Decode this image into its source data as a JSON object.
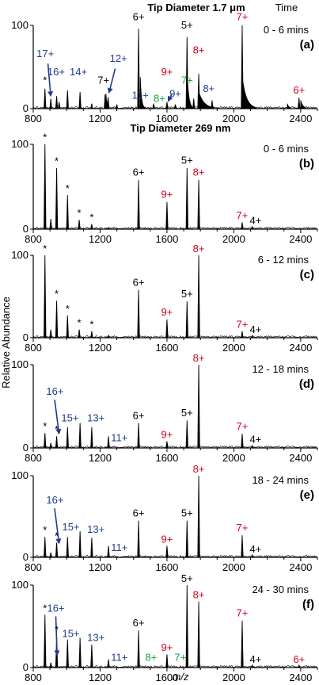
{
  "figure": {
    "header_a": "Tip Diameter 1.7 μm",
    "header_time": "Time",
    "header_b": "Tip Diameter 269 nm",
    "ylabel": "Relative Abundance",
    "xlabel": "m/z",
    "colors": {
      "black": "#000000",
      "red": "#d0021b",
      "blue": "#1f3c8c",
      "green": "#18a23a"
    }
  },
  "chart_data": [
    {
      "type": "line",
      "panel": "(a)",
      "time": "0 - 6 mins",
      "xlim": [
        800,
        2500
      ],
      "ylim": [
        0,
        100
      ],
      "xticks": [
        800,
        1200,
        1600,
        2000,
        2400
      ],
      "yticks": [
        0,
        100
      ],
      "peaks": [
        [
          870,
          24
        ],
        [
          905,
          12
        ],
        [
          940,
          15
        ],
        [
          955,
          8
        ],
        [
          1005,
          22
        ],
        [
          1080,
          20
        ],
        [
          1150,
          6
        ],
        [
          1230,
          17
        ],
        [
          1248,
          14
        ],
        [
          1300,
          5
        ],
        [
          1430,
          96
        ],
        [
          1520,
          6
        ],
        [
          1600,
          8
        ],
        [
          1650,
          5
        ],
        [
          1720,
          86
        ],
        [
          1760,
          12
        ],
        [
          1790,
          42
        ],
        [
          1870,
          10
        ],
        [
          2050,
          100
        ],
        [
          2390,
          13
        ]
      ],
      "humps": [
        [
          1440,
          38,
          1.6,
          28
        ],
        [
          1720,
          46,
          1.0,
          30
        ],
        [
          1790,
          20,
          0.8,
          90
        ],
        [
          2050,
          38,
          1.4,
          85
        ],
        [
          1235,
          18,
          0.4,
          12
        ],
        [
          1240,
          10,
          0.3,
          6
        ],
        [
          2320,
          6,
          0.2,
          20
        ],
        [
          2400,
          10,
          0.3,
          30
        ]
      ],
      "labels": [
        {
          "text": "17+",
          "x": 872,
          "y": 62,
          "c": "blue"
        },
        {
          "text": "16+",
          "x": 937,
          "y": 40,
          "c": "blue"
        },
        {
          "text": "*",
          "x": 870,
          "y": 30,
          "c": "black"
        },
        {
          "text": "14+",
          "x": 1070,
          "y": 40,
          "c": "blue"
        },
        {
          "text": "12+",
          "x": 1310,
          "y": 56,
          "c": "blue"
        },
        {
          "text": "7+",
          "x": 1220,
          "y": 30,
          "c": "black"
        },
        {
          "text": "11+",
          "x": 1440,
          "y": 12,
          "c": "blue"
        },
        {
          "text": "6+",
          "x": 1430,
          "y": 106,
          "c": "black"
        },
        {
          "text": "8+",
          "x": 1555,
          "y": 8,
          "c": "green"
        },
        {
          "text": "9+",
          "x": 1600,
          "y": 40,
          "c": "red"
        },
        {
          "text": "9+",
          "x": 1650,
          "y": 14,
          "c": "blue"
        },
        {
          "text": "7+",
          "x": 1720,
          "y": 30,
          "c": "green"
        },
        {
          "text": "5+",
          "x": 1720,
          "y": 96,
          "c": "black"
        },
        {
          "text": "8+",
          "x": 1790,
          "y": 66,
          "c": "red"
        },
        {
          "text": "8+",
          "x": 1850,
          "y": 20,
          "c": "blue"
        },
        {
          "text": "7+",
          "x": 2050,
          "y": 106,
          "c": "red"
        },
        {
          "text": "6+",
          "x": 2390,
          "y": 18,
          "c": "red"
        }
      ],
      "arrows": [
        [
          888,
          54,
          905,
          14
        ],
        [
          1290,
          48,
          1252,
          18
        ],
        [
          1630,
          18,
          1605,
          8
        ]
      ]
    },
    {
      "type": "line",
      "panel": "(b)",
      "time": "0 - 6 mins",
      "xlim": [
        800,
        2500
      ],
      "ylim": [
        0,
        100
      ],
      "xticks": [
        800,
        1200,
        1600,
        2000,
        2400
      ],
      "yticks": [
        0,
        100
      ],
      "peaks": [
        [
          870,
          100
        ],
        [
          905,
          12
        ],
        [
          940,
          72
        ],
        [
          1005,
          40
        ],
        [
          1075,
          11
        ],
        [
          1150,
          6
        ],
        [
          1250,
          2
        ],
        [
          1430,
          58
        ],
        [
          1600,
          32
        ],
        [
          1720,
          72
        ],
        [
          1790,
          58
        ],
        [
          2050,
          8
        ],
        [
          2110,
          3
        ]
      ],
      "humps": [],
      "labels": [
        {
          "text": "*",
          "x": 870,
          "y": 104,
          "c": "black"
        },
        {
          "text": "*",
          "x": 940,
          "y": 76,
          "c": "black"
        },
        {
          "text": "*",
          "x": 1005,
          "y": 44,
          "c": "black"
        },
        {
          "text": "*",
          "x": 1075,
          "y": 15,
          "c": "black"
        },
        {
          "text": "*",
          "x": 1150,
          "y": 10,
          "c": "black"
        },
        {
          "text": "6+",
          "x": 1430,
          "y": 63,
          "c": "black"
        },
        {
          "text": "9+",
          "x": 1600,
          "y": 37,
          "c": "red"
        },
        {
          "text": "5+",
          "x": 1720,
          "y": 77,
          "c": "black"
        },
        {
          "text": "8+",
          "x": 1790,
          "y": 63,
          "c": "red"
        },
        {
          "text": "7+",
          "x": 2050,
          "y": 12,
          "c": "red"
        },
        {
          "text": "4+",
          "x": 2130,
          "y": 6,
          "c": "black"
        }
      ],
      "arrows": []
    },
    {
      "type": "line",
      "panel": "(c)",
      "time": "6 - 12 mins",
      "xlim": [
        800,
        2500
      ],
      "ylim": [
        0,
        100
      ],
      "xticks": [
        800,
        1200,
        1600,
        2000,
        2400
      ],
      "yticks": [
        0,
        100
      ],
      "peaks": [
        [
          870,
          100
        ],
        [
          905,
          10
        ],
        [
          940,
          45
        ],
        [
          1005,
          27
        ],
        [
          1075,
          10
        ],
        [
          1150,
          8
        ],
        [
          1250,
          3
        ],
        [
          1430,
          58
        ],
        [
          1600,
          22
        ],
        [
          1720,
          44
        ],
        [
          1790,
          100
        ],
        [
          2050,
          8
        ],
        [
          2110,
          3
        ]
      ],
      "humps": [],
      "labels": [
        {
          "text": "*",
          "x": 870,
          "y": 104,
          "c": "black"
        },
        {
          "text": "*",
          "x": 940,
          "y": 49,
          "c": "black"
        },
        {
          "text": "*",
          "x": 1005,
          "y": 31,
          "c": "black"
        },
        {
          "text": "*",
          "x": 1075,
          "y": 14,
          "c": "black"
        },
        {
          "text": "*",
          "x": 1150,
          "y": 12,
          "c": "black"
        },
        {
          "text": "6+",
          "x": 1430,
          "y": 63,
          "c": "black"
        },
        {
          "text": "9+",
          "x": 1600,
          "y": 27,
          "c": "red"
        },
        {
          "text": "5+",
          "x": 1720,
          "y": 49,
          "c": "black"
        },
        {
          "text": "8+",
          "x": 1790,
          "y": 104,
          "c": "red"
        },
        {
          "text": "7+",
          "x": 2050,
          "y": 12,
          "c": "red"
        },
        {
          "text": "4+",
          "x": 2130,
          "y": 6,
          "c": "black"
        }
      ],
      "arrows": []
    },
    {
      "type": "line",
      "panel": "(d)",
      "time": "12 - 18 mins",
      "xlim": [
        800,
        2500
      ],
      "ylim": [
        0,
        100
      ],
      "xticks": [
        800,
        1200,
        1600,
        2000,
        2400
      ],
      "yticks": [
        0,
        100
      ],
      "peaks": [
        [
          870,
          18
        ],
        [
          905,
          6
        ],
        [
          940,
          14
        ],
        [
          1005,
          25
        ],
        [
          1080,
          30
        ],
        [
          1150,
          25
        ],
        [
          1250,
          14
        ],
        [
          1430,
          30
        ],
        [
          1600,
          8
        ],
        [
          1720,
          33
        ],
        [
          1790,
          100
        ],
        [
          2050,
          17
        ],
        [
          2110,
          3
        ]
      ],
      "humps": [],
      "labels": [
        {
          "text": "*",
          "x": 870,
          "y": 22,
          "c": "black"
        },
        {
          "text": "*",
          "x": 940,
          "y": 18,
          "c": "black"
        },
        {
          "text": "16+",
          "x": 930,
          "y": 64,
          "c": "blue"
        },
        {
          "text": "15+",
          "x": 1020,
          "y": 32,
          "c": "blue"
        },
        {
          "text": "13+",
          "x": 1175,
          "y": 32,
          "c": "blue"
        },
        {
          "text": "11+",
          "x": 1315,
          "y": 8,
          "c": "blue"
        },
        {
          "text": "6+",
          "x": 1430,
          "y": 35,
          "c": "black"
        },
        {
          "text": "9+",
          "x": 1600,
          "y": 12,
          "c": "red"
        },
        {
          "text": "5+",
          "x": 1720,
          "y": 38,
          "c": "black"
        },
        {
          "text": "8+",
          "x": 1790,
          "y": 104,
          "c": "red"
        },
        {
          "text": "7+",
          "x": 2050,
          "y": 22,
          "c": "red"
        },
        {
          "text": "4+",
          "x": 2130,
          "y": 6,
          "c": "black"
        }
      ],
      "arrows": [
        [
          928,
          58,
          955,
          16
        ]
      ]
    },
    {
      "type": "line",
      "panel": "(e)",
      "time": "18 - 24 mins",
      "xlim": [
        800,
        2500
      ],
      "ylim": [
        0,
        100
      ],
      "xticks": [
        800,
        1200,
        1600,
        2000,
        2400
      ],
      "yticks": [
        0,
        100
      ],
      "peaks": [
        [
          870,
          25
        ],
        [
          905,
          6
        ],
        [
          940,
          18
        ],
        [
          1005,
          25
        ],
        [
          1080,
          32
        ],
        [
          1150,
          24
        ],
        [
          1250,
          14
        ],
        [
          1430,
          45
        ],
        [
          1600,
          14
        ],
        [
          1720,
          45
        ],
        [
          1790,
          100
        ],
        [
          2050,
          27
        ],
        [
          2110,
          3
        ]
      ],
      "humps": [],
      "labels": [
        {
          "text": "*",
          "x": 870,
          "y": 29,
          "c": "black"
        },
        {
          "text": "*",
          "x": 940,
          "y": 22,
          "c": "black"
        },
        {
          "text": "16+",
          "x": 930,
          "y": 66,
          "c": "blue"
        },
        {
          "text": "15+",
          "x": 1025,
          "y": 33,
          "c": "blue"
        },
        {
          "text": "13+",
          "x": 1175,
          "y": 30,
          "c": "blue"
        },
        {
          "text": "11+",
          "x": 1315,
          "y": 8,
          "c": "blue"
        },
        {
          "text": "6+",
          "x": 1430,
          "y": 50,
          "c": "black"
        },
        {
          "text": "9+",
          "x": 1600,
          "y": 18,
          "c": "red"
        },
        {
          "text": "5+",
          "x": 1720,
          "y": 50,
          "c": "black"
        },
        {
          "text": "8+",
          "x": 1790,
          "y": 104,
          "c": "red"
        },
        {
          "text": "7+",
          "x": 2050,
          "y": 32,
          "c": "red"
        },
        {
          "text": "4+",
          "x": 2130,
          "y": 6,
          "c": "black"
        }
      ],
      "arrows": [
        [
          928,
          60,
          955,
          16
        ]
      ]
    },
    {
      "type": "line",
      "panel": "(f)",
      "time": "24 - 30 mins",
      "xlim": [
        800,
        2500
      ],
      "ylim": [
        0,
        100
      ],
      "xticks": [
        800,
        1200,
        1600,
        2000,
        2400
      ],
      "yticks": [
        0,
        100
      ],
      "peaks": [
        [
          870,
          64
        ],
        [
          905,
          6
        ],
        [
          940,
          38
        ],
        [
          1005,
          34
        ],
        [
          1080,
          36
        ],
        [
          1150,
          28
        ],
        [
          1250,
          10
        ],
        [
          1430,
          45
        ],
        [
          1600,
          16
        ],
        [
          1720,
          100
        ],
        [
          1790,
          80
        ],
        [
          2050,
          57
        ],
        [
          2110,
          3
        ],
        [
          2390,
          3
        ]
      ],
      "humps": [],
      "labels": [
        {
          "text": "*",
          "x": 870,
          "y": 68,
          "c": "black"
        },
        {
          "text": "*",
          "x": 940,
          "y": 42,
          "c": "black"
        },
        {
          "text": "16+",
          "x": 935,
          "y": 68,
          "c": "blue"
        },
        {
          "text": "15+",
          "x": 1025,
          "y": 37,
          "c": "blue"
        },
        {
          "text": "13+",
          "x": 1175,
          "y": 32,
          "c": "blue"
        },
        {
          "text": "11+",
          "x": 1315,
          "y": 8,
          "c": "blue"
        },
        {
          "text": "8+",
          "x": 1505,
          "y": 8,
          "c": "green"
        },
        {
          "text": "6+",
          "x": 1430,
          "y": 50,
          "c": "black"
        },
        {
          "text": "9+",
          "x": 1600,
          "y": 20,
          "c": "red"
        },
        {
          "text": "7+",
          "x": 1680,
          "y": 8,
          "c": "green"
        },
        {
          "text": "5+",
          "x": 1720,
          "y": 104,
          "c": "black"
        },
        {
          "text": "8+",
          "x": 1790,
          "y": 84,
          "c": "red"
        },
        {
          "text": "7+",
          "x": 2050,
          "y": 62,
          "c": "red"
        },
        {
          "text": "4+",
          "x": 2130,
          "y": 6,
          "c": "black"
        },
        {
          "text": "6+",
          "x": 2390,
          "y": 6,
          "c": "red"
        }
      ],
      "arrows": [
        [
          935,
          62,
          943,
          14
        ]
      ]
    }
  ]
}
